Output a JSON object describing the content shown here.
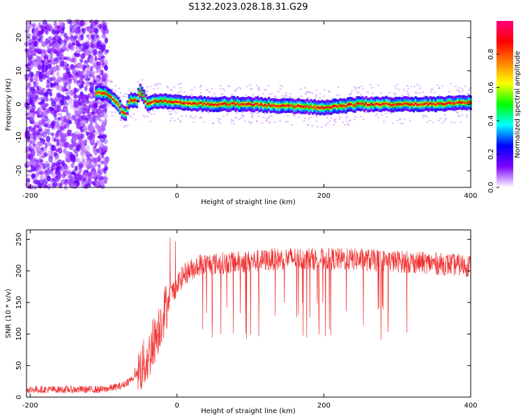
{
  "title": "S132.2023.028.18.31.G29",
  "charts": [
    {
      "type": "heatmap",
      "xlabel": "Height of straight line (km)",
      "ylabel": "Frequency (Hz)",
      "xlim": [
        -205,
        400
      ],
      "ylim": [
        -25,
        25
      ],
      "xticks": [
        -200,
        0,
        200,
        400
      ],
      "yticks": [
        -20,
        -10,
        0,
        10,
        20
      ],
      "colorbar": {
        "label": "Normalized spectral amplitude",
        "range": [
          0,
          1
        ],
        "ticks": [
          "0.0",
          "0.2",
          "0.4",
          "0.6",
          "0.8"
        ],
        "colormap": [
          "#ffffff",
          "#8000ff",
          "#0000ff",
          "#00ffff",
          "#00ff00",
          "#ffff00",
          "#ff8000",
          "#ff0000",
          "#ff0080"
        ]
      },
      "ridge": [
        [
          -120,
          3
        ],
        [
          -100,
          3.5
        ],
        [
          -90,
          2
        ],
        [
          -80,
          0
        ],
        [
          -75,
          -2
        ],
        [
          -70,
          -3
        ],
        [
          -65,
          1
        ],
        [
          -55,
          1
        ],
        [
          -50,
          4
        ],
        [
          -45,
          2
        ],
        [
          -40,
          0
        ],
        [
          -30,
          1
        ],
        [
          0,
          0.5
        ],
        [
          50,
          0
        ],
        [
          100,
          0
        ],
        [
          150,
          -0.5
        ],
        [
          200,
          -1
        ],
        [
          250,
          0
        ],
        [
          300,
          0
        ],
        [
          350,
          0
        ],
        [
          400,
          0.5
        ]
      ]
    },
    {
      "type": "line",
      "xlabel": "Height of straight line (km)",
      "ylabel": "SNR (10 * v/v)",
      "xlim": [
        -205,
        400
      ],
      "ylim": [
        0,
        265
      ],
      "xticks": [
        -200,
        0,
        200,
        400
      ],
      "yticks": [
        0,
        50,
        100,
        150,
        200,
        250
      ],
      "color": "#f03030",
      "envelope": [
        [
          -205,
          12
        ],
        [
          -100,
          12
        ],
        [
          -75,
          18
        ],
        [
          -60,
          30
        ],
        [
          -40,
          60
        ],
        [
          -25,
          110
        ],
        [
          -10,
          160
        ],
        [
          10,
          195
        ],
        [
          30,
          210
        ],
        [
          100,
          215
        ],
        [
          150,
          220
        ],
        [
          250,
          218
        ],
        [
          300,
          215
        ],
        [
          350,
          212
        ],
        [
          400,
          208
        ]
      ]
    }
  ]
}
